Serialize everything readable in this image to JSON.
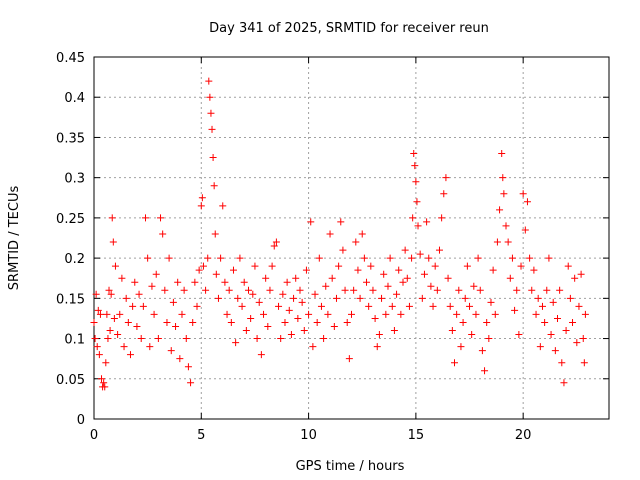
{
  "chart_data": {
    "type": "scatter",
    "title": "Day 341 of 2025, SRMTID for receiver reun",
    "xlabel": "GPS time / hours",
    "ylabel": "SRMTID / TECUs",
    "xlim": [
      0,
      24
    ],
    "ylim": [
      0,
      0.45
    ],
    "xticks": [
      0,
      5,
      10,
      15,
      20
    ],
    "xtick_labels": [
      "0",
      "5",
      "10",
      "15",
      "20"
    ],
    "yticks": [
      0,
      0.05,
      0.1,
      0.15,
      0.2,
      0.25,
      0.3,
      0.35,
      0.4,
      0.45
    ],
    "ytick_labels": [
      "0",
      "0.05",
      "0.1",
      "0.15",
      "0.2",
      "0.25",
      "0.3",
      "0.35",
      "0.4",
      "0.45"
    ],
    "grid": true,
    "marker": "+",
    "color": "#ff0000",
    "series": [
      {
        "name": "SRMTID",
        "points": [
          [
            0.0,
            0.12
          ],
          [
            0.05,
            0.1
          ],
          [
            0.1,
            0.155
          ],
          [
            0.15,
            0.09
          ],
          [
            0.2,
            0.135
          ],
          [
            0.25,
            0.08
          ],
          [
            0.3,
            0.13
          ],
          [
            0.35,
            0.05
          ],
          [
            0.4,
            0.04
          ],
          [
            0.45,
            0.045
          ],
          [
            0.5,
            0.04
          ],
          [
            0.55,
            0.07
          ],
          [
            0.6,
            0.13
          ],
          [
            0.65,
            0.1
          ],
          [
            0.7,
            0.16
          ],
          [
            0.75,
            0.11
          ],
          [
            0.8,
            0.155
          ],
          [
            0.85,
            0.25
          ],
          [
            0.9,
            0.22
          ],
          [
            0.95,
            0.125
          ],
          [
            1.0,
            0.19
          ],
          [
            1.1,
            0.105
          ],
          [
            1.2,
            0.13
          ],
          [
            1.3,
            0.175
          ],
          [
            1.4,
            0.09
          ],
          [
            1.5,
            0.15
          ],
          [
            1.6,
            0.12
          ],
          [
            1.7,
            0.08
          ],
          [
            1.8,
            0.14
          ],
          [
            1.9,
            0.17
          ],
          [
            2.0,
            0.115
          ],
          [
            2.1,
            0.155
          ],
          [
            2.2,
            0.1
          ],
          [
            2.3,
            0.14
          ],
          [
            2.4,
            0.25
          ],
          [
            2.5,
            0.2
          ],
          [
            2.6,
            0.09
          ],
          [
            2.7,
            0.165
          ],
          [
            2.8,
            0.13
          ],
          [
            2.9,
            0.18
          ],
          [
            3.0,
            0.1
          ],
          [
            3.1,
            0.25
          ],
          [
            3.2,
            0.23
          ],
          [
            3.3,
            0.16
          ],
          [
            3.4,
            0.12
          ],
          [
            3.5,
            0.2
          ],
          [
            3.6,
            0.085
          ],
          [
            3.7,
            0.145
          ],
          [
            3.8,
            0.115
          ],
          [
            3.9,
            0.17
          ],
          [
            4.0,
            0.075
          ],
          [
            4.1,
            0.13
          ],
          [
            4.2,
            0.16
          ],
          [
            4.3,
            0.1
          ],
          [
            4.4,
            0.065
          ],
          [
            4.5,
            0.045
          ],
          [
            4.6,
            0.12
          ],
          [
            4.7,
            0.17
          ],
          [
            4.8,
            0.14
          ],
          [
            4.9,
            0.185
          ],
          [
            5.0,
            0.265
          ],
          [
            5.05,
            0.275
          ],
          [
            5.1,
            0.19
          ],
          [
            5.2,
            0.16
          ],
          [
            5.3,
            0.2
          ],
          [
            5.35,
            0.42
          ],
          [
            5.4,
            0.4
          ],
          [
            5.45,
            0.38
          ],
          [
            5.5,
            0.36
          ],
          [
            5.55,
            0.325
          ],
          [
            5.6,
            0.29
          ],
          [
            5.65,
            0.23
          ],
          [
            5.7,
            0.18
          ],
          [
            5.8,
            0.15
          ],
          [
            5.9,
            0.2
          ],
          [
            6.0,
            0.265
          ],
          [
            6.1,
            0.17
          ],
          [
            6.2,
            0.13
          ],
          [
            6.3,
            0.16
          ],
          [
            6.4,
            0.12
          ],
          [
            6.5,
            0.185
          ],
          [
            6.6,
            0.095
          ],
          [
            6.7,
            0.15
          ],
          [
            6.8,
            0.2
          ],
          [
            6.9,
            0.14
          ],
          [
            7.0,
            0.17
          ],
          [
            7.1,
            0.11
          ],
          [
            7.2,
            0.16
          ],
          [
            7.3,
            0.125
          ],
          [
            7.4,
            0.155
          ],
          [
            7.5,
            0.19
          ],
          [
            7.6,
            0.1
          ],
          [
            7.7,
            0.145
          ],
          [
            7.8,
            0.08
          ],
          [
            7.9,
            0.13
          ],
          [
            8.0,
            0.175
          ],
          [
            8.1,
            0.115
          ],
          [
            8.2,
            0.16
          ],
          [
            8.3,
            0.19
          ],
          [
            8.4,
            0.215
          ],
          [
            8.5,
            0.22
          ],
          [
            8.6,
            0.14
          ],
          [
            8.7,
            0.1
          ],
          [
            8.8,
            0.155
          ],
          [
            8.9,
            0.12
          ],
          [
            9.0,
            0.17
          ],
          [
            9.1,
            0.135
          ],
          [
            9.2,
            0.105
          ],
          [
            9.3,
            0.15
          ],
          [
            9.4,
            0.175
          ],
          [
            9.5,
            0.125
          ],
          [
            9.6,
            0.16
          ],
          [
            9.7,
            0.145
          ],
          [
            9.8,
            0.11
          ],
          [
            9.9,
            0.185
          ],
          [
            10.0,
            0.13
          ],
          [
            10.1,
            0.245
          ],
          [
            10.2,
            0.09
          ],
          [
            10.3,
            0.155
          ],
          [
            10.4,
            0.12
          ],
          [
            10.5,
            0.2
          ],
          [
            10.6,
            0.14
          ],
          [
            10.7,
            0.1
          ],
          [
            10.8,
            0.165
          ],
          [
            10.9,
            0.13
          ],
          [
            11.0,
            0.23
          ],
          [
            11.1,
            0.175
          ],
          [
            11.2,
            0.115
          ],
          [
            11.3,
            0.15
          ],
          [
            11.4,
            0.19
          ],
          [
            11.5,
            0.245
          ],
          [
            11.6,
            0.21
          ],
          [
            11.7,
            0.16
          ],
          [
            11.8,
            0.12
          ],
          [
            11.9,
            0.075
          ],
          [
            12.0,
            0.13
          ],
          [
            12.1,
            0.16
          ],
          [
            12.2,
            0.22
          ],
          [
            12.3,
            0.185
          ],
          [
            12.4,
            0.15
          ],
          [
            12.5,
            0.23
          ],
          [
            12.6,
            0.2
          ],
          [
            12.7,
            0.17
          ],
          [
            12.8,
            0.14
          ],
          [
            12.9,
            0.19
          ],
          [
            13.0,
            0.16
          ],
          [
            13.1,
            0.125
          ],
          [
            13.2,
            0.09
          ],
          [
            13.3,
            0.105
          ],
          [
            13.4,
            0.15
          ],
          [
            13.5,
            0.18
          ],
          [
            13.6,
            0.13
          ],
          [
            13.7,
            0.165
          ],
          [
            13.8,
            0.2
          ],
          [
            13.9,
            0.14
          ],
          [
            14.0,
            0.11
          ],
          [
            14.1,
            0.155
          ],
          [
            14.2,
            0.185
          ],
          [
            14.3,
            0.13
          ],
          [
            14.4,
            0.17
          ],
          [
            14.5,
            0.21
          ],
          [
            14.6,
            0.175
          ],
          [
            14.7,
            0.14
          ],
          [
            14.8,
            0.2
          ],
          [
            14.85,
            0.25
          ],
          [
            14.9,
            0.33
          ],
          [
            14.95,
            0.315
          ],
          [
            15.0,
            0.295
          ],
          [
            15.05,
            0.27
          ],
          [
            15.1,
            0.24
          ],
          [
            15.2,
            0.205
          ],
          [
            15.3,
            0.15
          ],
          [
            15.4,
            0.18
          ],
          [
            15.5,
            0.245
          ],
          [
            15.6,
            0.2
          ],
          [
            15.7,
            0.165
          ],
          [
            15.8,
            0.14
          ],
          [
            15.9,
            0.19
          ],
          [
            16.0,
            0.16
          ],
          [
            16.1,
            0.21
          ],
          [
            16.2,
            0.25
          ],
          [
            16.3,
            0.28
          ],
          [
            16.4,
            0.3
          ],
          [
            16.5,
            0.175
          ],
          [
            16.6,
            0.14
          ],
          [
            16.7,
            0.11
          ],
          [
            16.8,
            0.07
          ],
          [
            16.9,
            0.13
          ],
          [
            17.0,
            0.16
          ],
          [
            17.1,
            0.09
          ],
          [
            17.2,
            0.12
          ],
          [
            17.3,
            0.15
          ],
          [
            17.4,
            0.19
          ],
          [
            17.5,
            0.14
          ],
          [
            17.6,
            0.105
          ],
          [
            17.7,
            0.165
          ],
          [
            17.8,
            0.13
          ],
          [
            17.9,
            0.2
          ],
          [
            18.0,
            0.16
          ],
          [
            18.1,
            0.085
          ],
          [
            18.2,
            0.06
          ],
          [
            18.3,
            0.12
          ],
          [
            18.4,
            0.1
          ],
          [
            18.5,
            0.145
          ],
          [
            18.6,
            0.185
          ],
          [
            18.7,
            0.13
          ],
          [
            18.8,
            0.22
          ],
          [
            18.9,
            0.26
          ],
          [
            19.0,
            0.33
          ],
          [
            19.05,
            0.3
          ],
          [
            19.1,
            0.28
          ],
          [
            19.2,
            0.24
          ],
          [
            19.3,
            0.22
          ],
          [
            19.4,
            0.175
          ],
          [
            19.5,
            0.2
          ],
          [
            19.6,
            0.135
          ],
          [
            19.7,
            0.16
          ],
          [
            19.8,
            0.105
          ],
          [
            19.9,
            0.19
          ],
          [
            20.0,
            0.28
          ],
          [
            20.1,
            0.235
          ],
          [
            20.2,
            0.27
          ],
          [
            20.3,
            0.2
          ],
          [
            20.4,
            0.16
          ],
          [
            20.5,
            0.185
          ],
          [
            20.6,
            0.13
          ],
          [
            20.7,
            0.15
          ],
          [
            20.8,
            0.09
          ],
          [
            20.9,
            0.14
          ],
          [
            21.0,
            0.12
          ],
          [
            21.1,
            0.16
          ],
          [
            21.2,
            0.2
          ],
          [
            21.3,
            0.105
          ],
          [
            21.4,
            0.145
          ],
          [
            21.5,
            0.085
          ],
          [
            21.6,
            0.125
          ],
          [
            21.7,
            0.16
          ],
          [
            21.8,
            0.07
          ],
          [
            21.9,
            0.045
          ],
          [
            22.0,
            0.11
          ],
          [
            22.1,
            0.19
          ],
          [
            22.2,
            0.15
          ],
          [
            22.3,
            0.12
          ],
          [
            22.4,
            0.175
          ],
          [
            22.5,
            0.095
          ],
          [
            22.6,
            0.14
          ],
          [
            22.7,
            0.18
          ],
          [
            22.8,
            0.1
          ],
          [
            22.85,
            0.07
          ],
          [
            22.9,
            0.13
          ]
        ]
      }
    ]
  }
}
